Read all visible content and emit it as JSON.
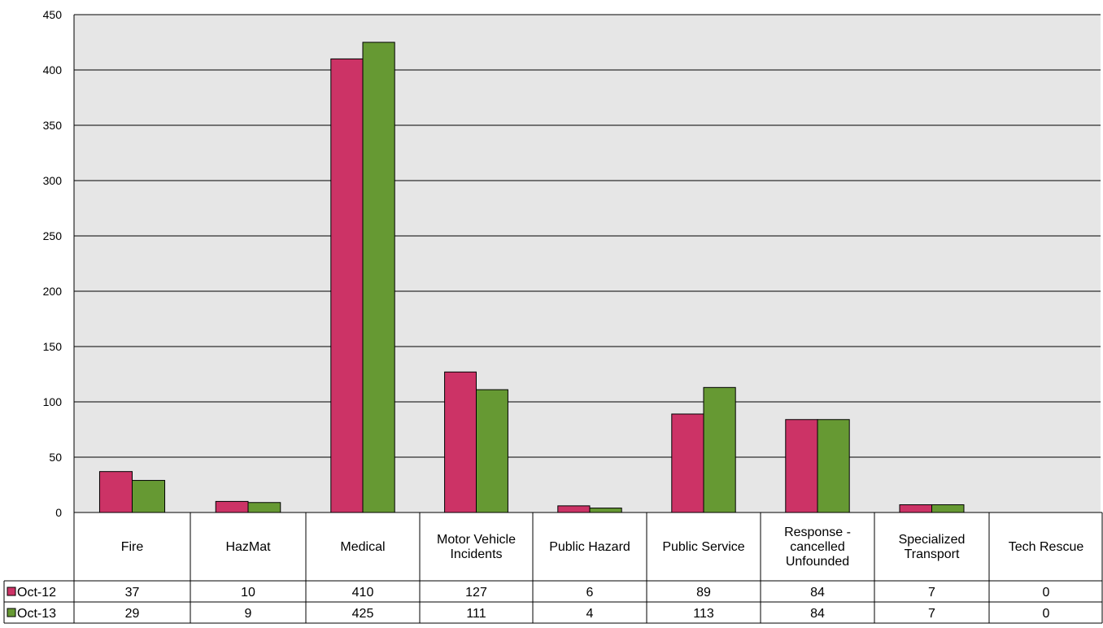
{
  "chart_data": {
    "type": "bar",
    "categories": [
      [
        "Fire"
      ],
      [
        "HazMat"
      ],
      [
        "Medical"
      ],
      [
        "Motor Vehicle",
        "Incidents"
      ],
      [
        "Public Hazard"
      ],
      [
        "Public Service"
      ],
      [
        "Response -",
        "cancelled",
        "Unfounded"
      ],
      [
        "Specialized",
        "Transport"
      ],
      [
        "Tech Rescue"
      ]
    ],
    "series": [
      {
        "name": "Oct-12",
        "values": [
          37,
          10,
          410,
          127,
          6,
          89,
          84,
          7,
          0
        ],
        "color": "#cc3366"
      },
      {
        "name": "Oct-13",
        "values": [
          29,
          9,
          425,
          111,
          4,
          113,
          84,
          7,
          0
        ],
        "color": "#669933"
      }
    ],
    "ylim": [
      0,
      450
    ],
    "yticks": [
      0,
      50,
      100,
      150,
      200,
      250,
      300,
      350,
      400,
      450
    ],
    "grid": true,
    "plot_background": "#e6e6e6",
    "legend": "data-table-left",
    "data_table": true
  }
}
